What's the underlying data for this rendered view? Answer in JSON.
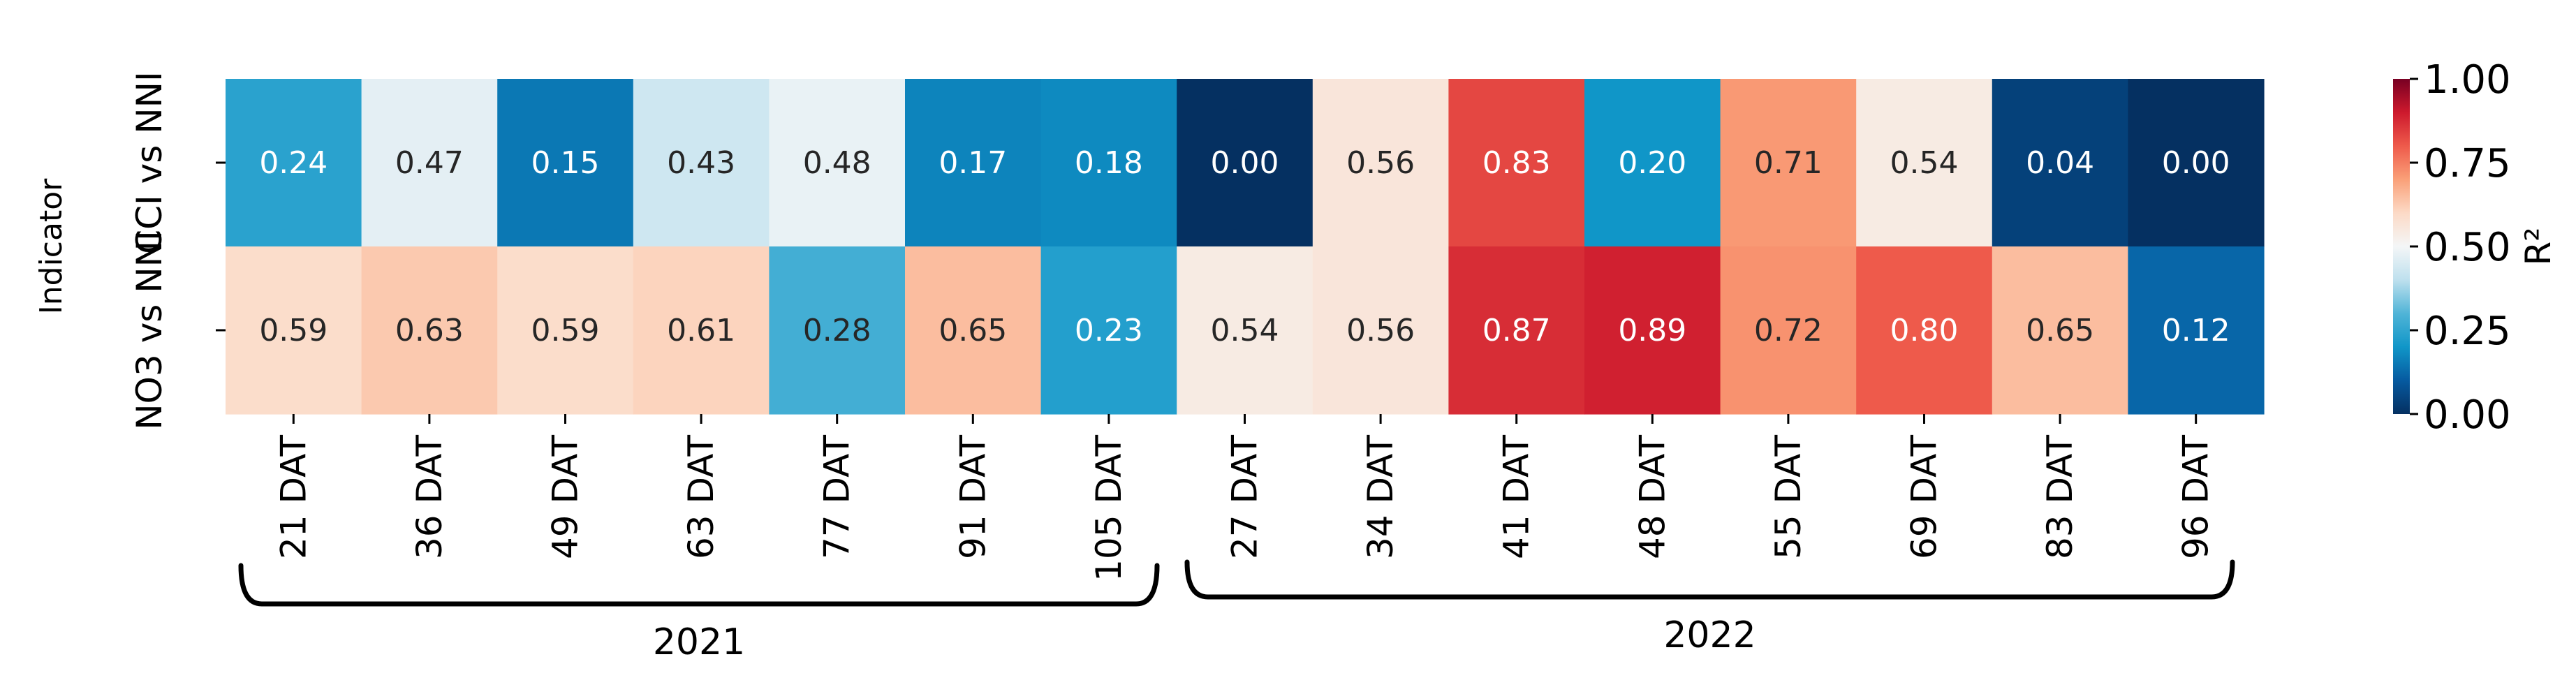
{
  "chart_data": {
    "type": "heatmap",
    "title": "",
    "xlabel": "",
    "ylabel": "Indicator",
    "rows": [
      "CCI vs NNI",
      "NO3 vs NNI"
    ],
    "columns": [
      "21 DAT",
      "36 DAT",
      "49 DAT",
      "63 DAT",
      "77 DAT",
      "91 DAT",
      "105 DAT",
      "27 DAT",
      "34 DAT",
      "41 DAT",
      "48 DAT",
      "55 DAT",
      "69 DAT",
      "83 DAT",
      "96 DAT"
    ],
    "values": [
      [
        0.24,
        0.47,
        0.15,
        0.43,
        0.48,
        0.17,
        0.18,
        0.0,
        0.56,
        0.83,
        0.2,
        0.71,
        0.54,
        0.04,
        0.0
      ],
      [
        0.59,
        0.63,
        0.59,
        0.61,
        0.28,
        0.65,
        0.23,
        0.54,
        0.56,
        0.87,
        0.89,
        0.72,
        0.8,
        0.65,
        0.12
      ]
    ],
    "colorbar": {
      "label": "R²",
      "range": [
        0.0,
        1.0
      ],
      "ticks": [
        "0.00",
        "0.25",
        "0.50",
        "0.75",
        "1.00"
      ],
      "colormap": "RdBu_r"
    },
    "groups": [
      {
        "label": "2021",
        "start": 0,
        "end": 6
      },
      {
        "label": "2022",
        "start": 7,
        "end": 14
      }
    ]
  }
}
